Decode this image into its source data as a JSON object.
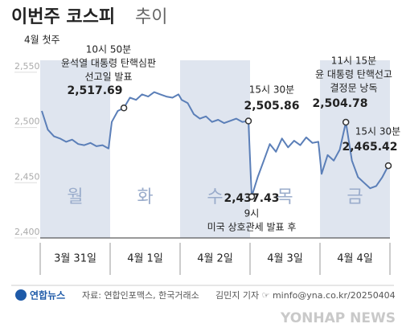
{
  "chart_data": {
    "type": "line",
    "title": "이번주 코스피",
    "subtitle": "추이",
    "period": "4월 첫주",
    "categories": [
      "3월 31일",
      "4월 1일",
      "4월 2일",
      "4월 3일",
      "4월 4일"
    ],
    "day_marks": [
      "월",
      "화",
      "수",
      "목",
      "금"
    ],
    "color": "#5b7fb8",
    "shade_color": "#dfe5ef",
    "values": [
      [
        2515,
        2498,
        2492,
        2490,
        2487,
        2489,
        2485,
        2484,
        2486,
        2483,
        2484,
        2481
      ],
      [
        2505,
        2515,
        2517.69,
        2527,
        2525,
        2530,
        2528,
        2532,
        2530,
        2528,
        2527,
        2530
      ],
      [
        2525,
        2522,
        2512,
        2508,
        2510,
        2505,
        2507,
        2504,
        2506,
        2508,
        2505,
        2505.86
      ],
      [
        2437.43,
        2455,
        2470,
        2485,
        2478,
        2490,
        2482,
        2488,
        2484,
        2491,
        2486,
        2487
      ],
      [
        2458,
        2475,
        2470,
        2480,
        2504.78,
        2470,
        2455,
        2450,
        2445,
        2447,
        2455,
        2465.42
      ]
    ],
    "value_labels": [
      [
        null,
        null,
        null,
        null,
        null,
        null,
        null,
        null,
        null,
        null,
        null,
        null
      ],
      [
        null,
        null,
        "2,517.69",
        null,
        null,
        null,
        null,
        null,
        null,
        null,
        null,
        null
      ],
      [
        null,
        null,
        null,
        null,
        null,
        null,
        null,
        null,
        null,
        null,
        null,
        "2,505.86"
      ],
      [
        "2,437.43",
        null,
        null,
        null,
        null,
        null,
        null,
        null,
        null,
        null,
        null,
        null
      ],
      [
        null,
        null,
        null,
        null,
        "2,504.78",
        null,
        null,
        null,
        null,
        null,
        null,
        "2,465.42"
      ]
    ],
    "annotations": [
      {
        "day": 1,
        "point": 2,
        "lines": [
          "10시 50분",
          "윤석열 대통령 탄핵심판",
          "선고일 발표"
        ]
      },
      {
        "day": 2,
        "point": 11,
        "lines": [
          "15시 30분"
        ]
      },
      {
        "day": 3,
        "point": 0,
        "lines": [
          "9시",
          "미국 상호관세 발표 후"
        ]
      },
      {
        "day": 4,
        "point": 4,
        "lines": [
          "11시 15분",
          "윤 대통령 탄핵선고",
          "결정문 낭독"
        ]
      },
      {
        "day": 4,
        "point": 11,
        "lines": [
          "15시 30분"
        ]
      }
    ],
    "ylim": [
      2400,
      2555
    ],
    "yticks": [
      {
        "value": 2400,
        "label": "2,400"
      },
      {
        "value": 2450,
        "label": "2,450"
      },
      {
        "value": 2500,
        "label": "2,500"
      },
      {
        "value": 2550,
        "label": "2,550"
      }
    ],
    "source": "자료: 연합인포맥스, 한국거래소",
    "credit": "김민지 기자 ☞ minfo@yna.co.kr/20250404",
    "logo": "연합뉴스",
    "watermark": "YONHAP NEWS"
  }
}
